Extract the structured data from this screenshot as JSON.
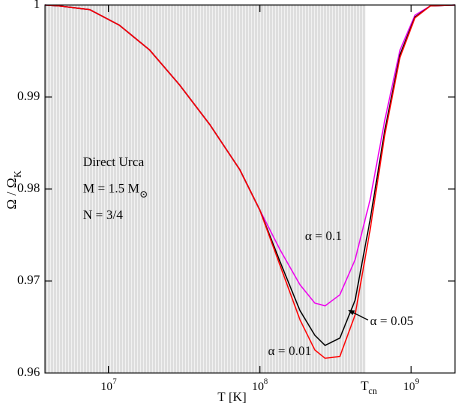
{
  "chart_data": {
    "type": "line",
    "xlabel": "T [K]",
    "ylabel": {
      "main": "Ω / Ω",
      "sub": "K"
    },
    "log_x": true,
    "xlim": [
      3800000,
      1950000000
    ],
    "ylim": [
      0.96,
      1
    ],
    "xticks": [
      {
        "value": 10000000,
        "label": "10",
        "exp": "7"
      },
      {
        "value": 100000000,
        "label": "10",
        "exp": "8"
      },
      {
        "value": 1000000000,
        "label": "10",
        "exp": "9"
      }
    ],
    "yticks": [
      0.96,
      0.97,
      0.98,
      0.99,
      1
    ],
    "shaded_x": [
      3800000,
      500000000
    ],
    "shade_label": {
      "main": "T",
      "sub": "cn"
    },
    "notes": [
      "Direct Urca",
      {
        "main": "M = 1.5 M",
        "sub": "⊙"
      },
      "N = 3/4"
    ],
    "x": [
      3800000,
      4700000,
      7500000,
      11800000,
      18700000,
      29500000,
      46700000,
      73700000,
      100000000,
      136000000,
      184000000,
      231000000,
      270000000,
      338000000,
      426000000,
      535000000,
      670000000,
      844000000,
      1060000000,
      1340000000,
      1950000000
    ],
    "series": [
      {
        "name": "α = 0.1",
        "color": "#ee00ee",
        "values": [
          1,
          0.9999,
          0.9995,
          0.9978,
          0.9951,
          0.9913,
          0.987,
          0.9821,
          0.9777,
          0.9734,
          0.9696,
          0.9676,
          0.9673,
          0.9685,
          0.9723,
          0.9788,
          0.9875,
          0.9951,
          0.9989,
          0.9999,
          1
        ]
      },
      {
        "name": "α = 0.05",
        "color": "#000000",
        "values": [
          1,
          0.9999,
          0.9995,
          0.9978,
          0.9951,
          0.9913,
          0.987,
          0.9821,
          0.9777,
          0.9721,
          0.9668,
          0.9641,
          0.963,
          0.9638,
          0.9679,
          0.9766,
          0.9864,
          0.9946,
          0.9987,
          0.9999,
          1
        ]
      },
      {
        "name": "α = 0.01",
        "color": "#ff0000",
        "values": [
          1,
          0.9999,
          0.9995,
          0.9978,
          0.9951,
          0.9913,
          0.987,
          0.9821,
          0.9777,
          0.9717,
          0.9658,
          0.9625,
          0.9616,
          0.9618,
          0.9663,
          0.9755,
          0.9859,
          0.9943,
          0.9986,
          0.9999,
          1
        ]
      }
    ]
  }
}
